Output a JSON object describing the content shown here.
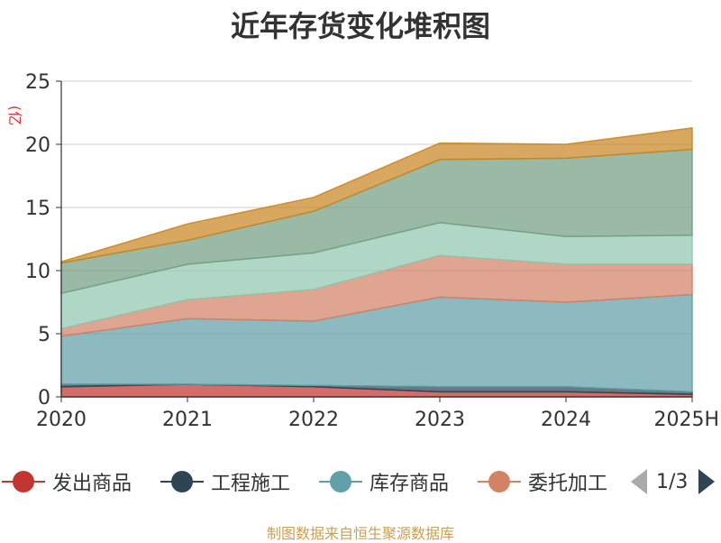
{
  "chart_data": {
    "type": "area",
    "stacked": true,
    "title": "近年存货变化堆积图",
    "unit_label": "(亿元)",
    "categories": [
      "2020",
      "2021",
      "2022",
      "2023",
      "2024",
      "2025H"
    ],
    "ylim": [
      0,
      25
    ],
    "y_ticks": [
      "0",
      "5",
      "10",
      "15",
      "20",
      "25"
    ],
    "grid": true,
    "series": [
      {
        "name": "发出商品",
        "color": "#c23531",
        "values": [
          0.8,
          1.0,
          0.8,
          0.4,
          0.4,
          0.2
        ]
      },
      {
        "name": "工程施工",
        "color": "#2f4554",
        "values": [
          0.2,
          0.0,
          0.1,
          0.4,
          0.4,
          0.2
        ]
      },
      {
        "name": "库存商品",
        "color": "#61a0a8",
        "values": [
          3.8,
          5.2,
          5.1,
          7.1,
          6.7,
          7.7
        ]
      },
      {
        "name": "委托加工",
        "color": "#d48265",
        "values": [
          0.6,
          1.5,
          2.5,
          3.3,
          3.0,
          2.4
        ]
      },
      {
        "name": "",
        "color": "#91c7ae",
        "values": [
          2.8,
          2.8,
          2.9,
          2.6,
          2.2,
          2.3
        ]
      },
      {
        "name": "",
        "color": "#749f83",
        "values": [
          2.4,
          1.9,
          3.3,
          5.0,
          6.2,
          6.8
        ]
      },
      {
        "name": "",
        "color": "#ca8622",
        "values": [
          0.1,
          1.3,
          1.1,
          1.3,
          1.1,
          1.7
        ]
      }
    ]
  },
  "legend": {
    "items": [
      {
        "label": "发出商品",
        "color": "#c23531"
      },
      {
        "label": "工程施工",
        "color": "#2f4554"
      },
      {
        "label": "库存商品",
        "color": "#61a0a8"
      },
      {
        "label": "委托加工",
        "color": "#d48265"
      }
    ],
    "page": "1/3"
  },
  "source": "制图数据来自恒生聚源数据库"
}
